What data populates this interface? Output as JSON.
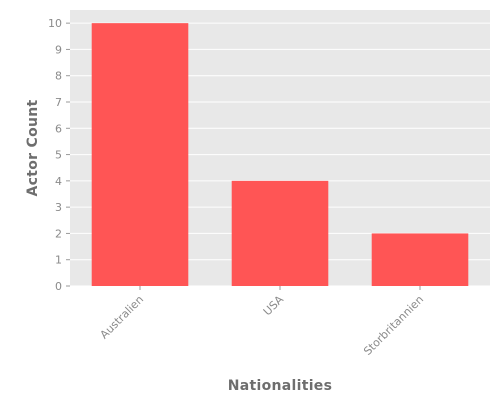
{
  "chart_data": {
    "type": "bar",
    "categories": [
      "Australien",
      "USA",
      "Storbritannien"
    ],
    "values": [
      10,
      4,
      2
    ],
    "title": "",
    "xlabel": "Nationalities",
    "ylabel": "Actor Count",
    "ylim": [
      0,
      10.5
    ],
    "yticks": [
      0,
      1,
      2,
      3,
      4,
      5,
      6,
      7,
      8,
      9,
      10
    ],
    "grid": true,
    "colors": {
      "bar": "#ff5555",
      "plot_background": "#e8e8e8",
      "grid": "#ffffff"
    }
  }
}
